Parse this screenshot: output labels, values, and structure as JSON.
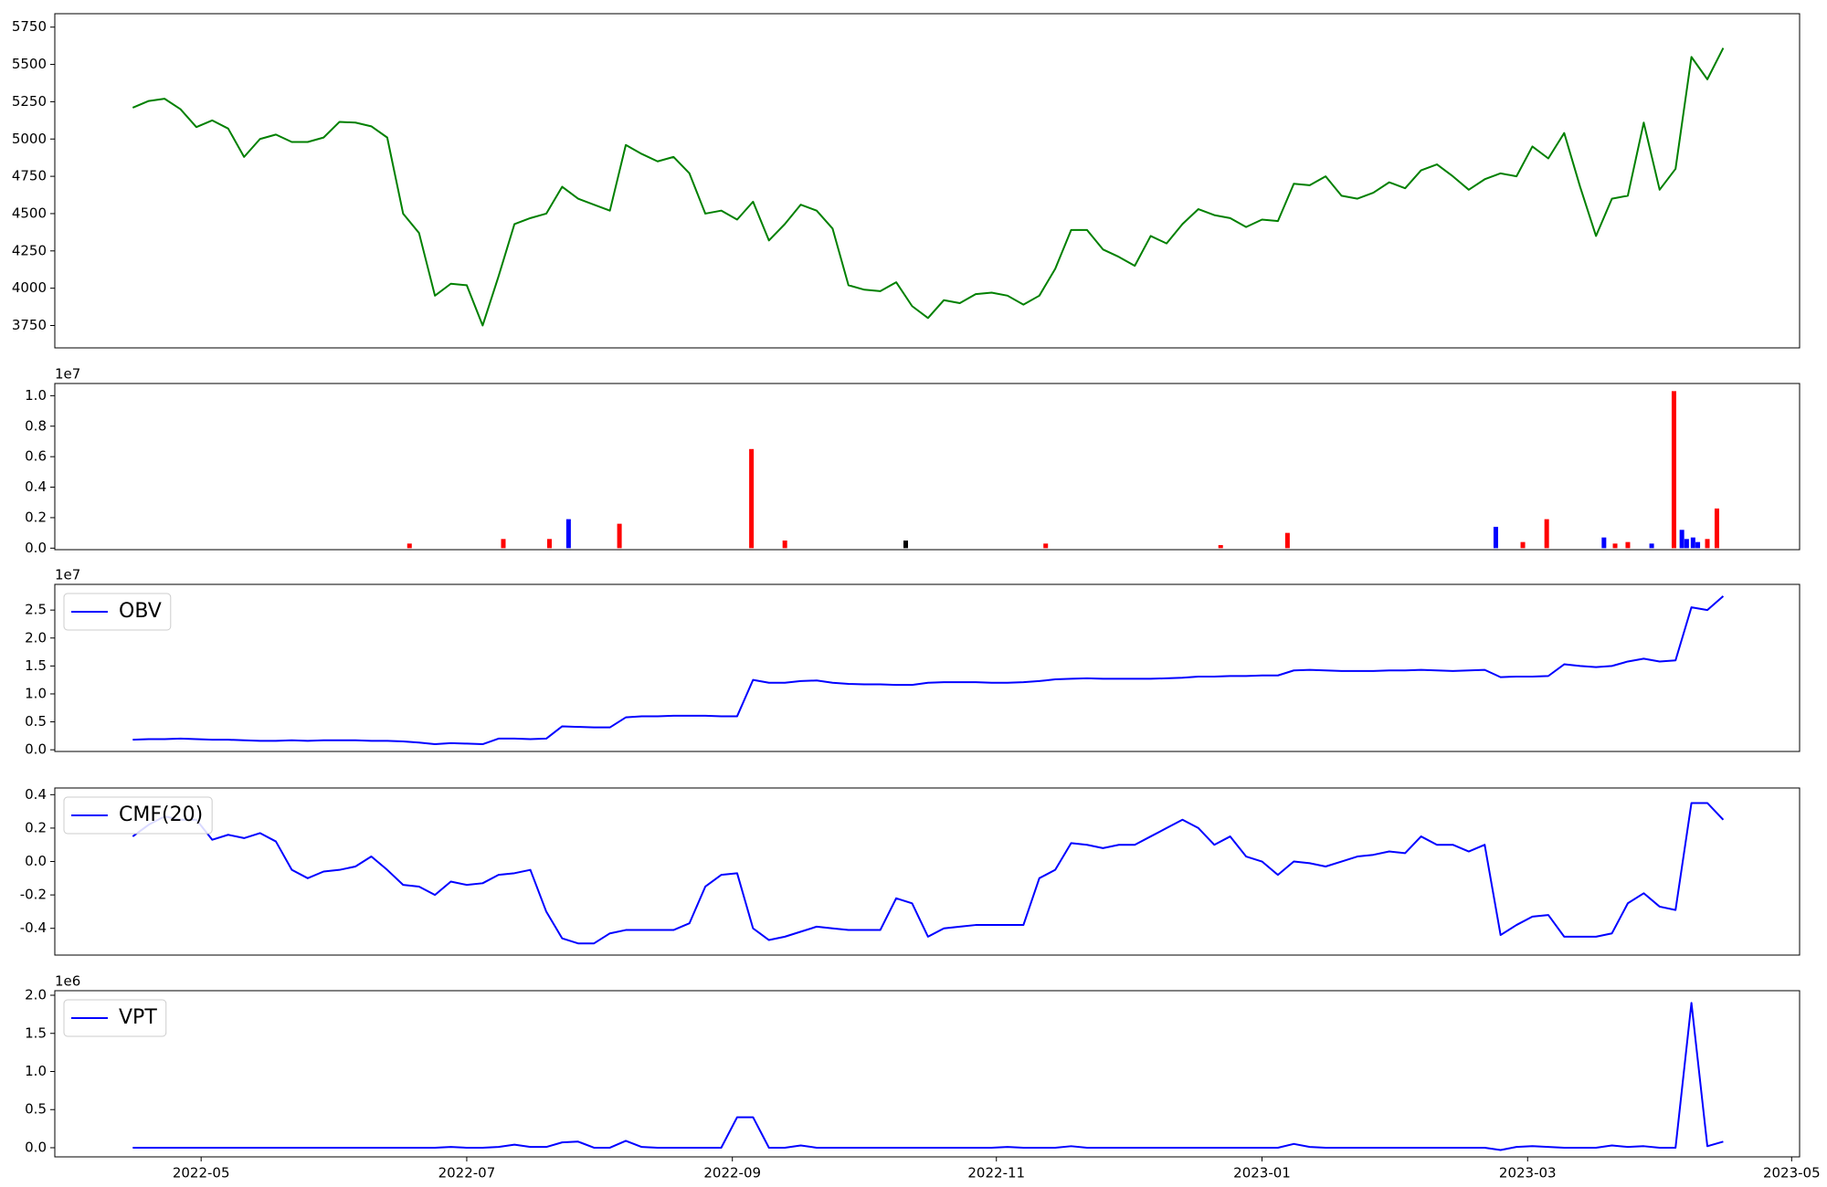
{
  "chart_data": [
    {
      "type": "line",
      "x": [
        2022.29,
        2022.3,
        2022.31,
        2022.32,
        2022.33,
        2022.34,
        2022.35,
        2022.36,
        2022.37,
        2022.38,
        2022.39,
        2022.4,
        2022.41,
        2022.42,
        2022.43,
        2022.44,
        2022.45,
        2022.46,
        2022.47,
        2022.48,
        2022.49,
        2022.5,
        2022.51,
        2022.52,
        2022.53,
        2022.54,
        2022.55,
        2022.56,
        2022.57,
        2022.58,
        2022.59,
        2022.6,
        2022.61,
        2022.62,
        2022.63,
        2022.64,
        2022.65,
        2022.66,
        2022.67,
        2022.68,
        2022.69,
        2022.7,
        2022.71,
        2022.72,
        2022.73,
        2022.74,
        2022.75,
        2022.76,
        2022.77,
        2022.78,
        2022.79,
        2022.8,
        2022.81,
        2022.82,
        2022.83,
        2022.84,
        2022.85,
        2022.86,
        2022.87,
        2022.88,
        2022.89,
        2022.9,
        2022.91,
        2022.92,
        2022.93,
        2022.94,
        2022.95,
        2022.96,
        2022.97,
        2022.98,
        2022.99,
        2023,
        2023.01,
        2023.02,
        2023.03,
        2023.04,
        2023.05,
        2023.06,
        2023.07,
        2023.08,
        2023.09,
        2023.1,
        2023.11,
        2023.12,
        2023.13,
        2023.14,
        2023.15,
        2023.16,
        2023.17,
        2023.18,
        2023.19,
        2023.2,
        2023.21,
        2023.22,
        2023.23,
        2023.24,
        2023.25,
        2023.26,
        2023.27,
        2023.28,
        2023.29
      ],
      "series": [
        {
          "color": "#008000",
          "values": [
            5210,
            5255,
            5270,
            5200,
            5080,
            5125,
            5070,
            4880,
            5000,
            5030,
            4980,
            4980,
            5010,
            5115,
            5110,
            5085,
            5010,
            4500,
            4370,
            3950,
            4030,
            4020,
            3750,
            4080,
            4430,
            4470,
            4500,
            4680,
            4600,
            4560,
            4520,
            4960,
            4900,
            4850,
            4880,
            4770,
            4500,
            4520,
            4460,
            4580,
            4320,
            4430,
            4560,
            4520,
            4400,
            4020,
            3990,
            3980,
            4040,
            3880,
            3800,
            3920,
            3900,
            3960,
            3970,
            3950,
            3890,
            3950,
            4130,
            4390,
            4390,
            4260,
            4210,
            4150,
            4350,
            4300,
            4430,
            4530,
            4490,
            4470,
            4410,
            4460,
            4450,
            4700,
            4690,
            4750,
            4620,
            4600,
            4640,
            4710,
            4670,
            4790,
            4830,
            4750,
            4660,
            4730,
            4770,
            4750,
            4950,
            4870,
            5040,
            4680,
            4350,
            4600,
            4620,
            5110,
            4660,
            4800,
            5550,
            5400,
            5610
          ]
        }
      ],
      "xlim": [
        2022.241,
        2023.338
      ],
      "ylim": [
        3600,
        5840
      ],
      "yticks": [
        3750,
        4000,
        4250,
        4500,
        4750,
        5000,
        5250,
        5500,
        5750
      ]
    },
    {
      "type": "bar",
      "offset_label": "1e7",
      "x": [
        2022.464,
        2022.523,
        2022.552,
        2022.564,
        2022.596,
        2022.679,
        2022.7,
        2022.776,
        2022.864,
        2022.974,
        2023.016,
        2023.147,
        2023.164,
        2023.179,
        2023.215,
        2023.222,
        2023.23,
        2023.245,
        2023.259,
        2023.264,
        2023.267,
        2023.271,
        2023.274,
        2023.28,
        2023.286
      ],
      "values": [
        0.03,
        0.06,
        0.06,
        0.19,
        0.16,
        0.65,
        0.05,
        0.05,
        0.03,
        0.02,
        0.1,
        0.14,
        0.04,
        0.19,
        0.07,
        0.03,
        0.04,
        0.03,
        1.03,
        0.12,
        0.06,
        0.07,
        0.04,
        0.06,
        0.26
      ],
      "colors": [
        "#ff0000",
        "#ff0000",
        "#ff0000",
        "#0000ff",
        "#ff0000",
        "#ff0000",
        "#ff0000",
        "#000000",
        "#ff0000",
        "#ff0000",
        "#ff0000",
        "#0000ff",
        "#ff0000",
        "#ff0000",
        "#0000ff",
        "#ff0000",
        "#ff0000",
        "#0000ff",
        "#ff0000",
        "#0000ff",
        "#0000ff",
        "#0000ff",
        "#0000ff",
        "#ff0000",
        "#ff0000"
      ],
      "xlim": [
        2022.241,
        2023.338
      ],
      "ylim": [
        -0.01,
        1.08
      ],
      "yticks": [
        {
          "value": 0,
          "label": "0.0"
        },
        0.2,
        0.4,
        0.6,
        0.8,
        {
          "value": 1,
          "label": "1.0"
        }
      ]
    },
    {
      "type": "line",
      "offset_label": "1e7",
      "legend": "upper left",
      "x": [
        2022.29,
        2022.3,
        2022.31,
        2022.32,
        2022.33,
        2022.34,
        2022.35,
        2022.36,
        2022.37,
        2022.38,
        2022.39,
        2022.4,
        2022.41,
        2022.42,
        2022.43,
        2022.44,
        2022.45,
        2022.46,
        2022.47,
        2022.48,
        2022.49,
        2022.5,
        2022.51,
        2022.52,
        2022.53,
        2022.54,
        2022.55,
        2022.56,
        2022.57,
        2022.58,
        2022.59,
        2022.6,
        2022.61,
        2022.62,
        2022.63,
        2022.64,
        2022.65,
        2022.66,
        2022.67,
        2022.68,
        2022.69,
        2022.7,
        2022.71,
        2022.72,
        2022.73,
        2022.74,
        2022.75,
        2022.76,
        2022.77,
        2022.78,
        2022.79,
        2022.8,
        2022.81,
        2022.82,
        2022.83,
        2022.84,
        2022.85,
        2022.86,
        2022.87,
        2022.88,
        2022.89,
        2022.9,
        2022.91,
        2022.92,
        2022.93,
        2022.94,
        2022.95,
        2022.96,
        2022.97,
        2022.98,
        2022.99,
        2023,
        2023.01,
        2023.02,
        2023.03,
        2023.04,
        2023.05,
        2023.06,
        2023.07,
        2023.08,
        2023.09,
        2023.1,
        2023.11,
        2023.12,
        2023.13,
        2023.14,
        2023.15,
        2023.16,
        2023.17,
        2023.18,
        2023.19,
        2023.2,
        2023.21,
        2023.22,
        2023.23,
        2023.24,
        2023.25,
        2023.26,
        2023.27,
        2023.28,
        2023.29
      ],
      "series": [
        {
          "name": "OBV",
          "color": "#0000ff",
          "values": [
            0.18,
            0.19,
            0.19,
            0.2,
            0.19,
            0.18,
            0.18,
            0.17,
            0.16,
            0.16,
            0.17,
            0.16,
            0.17,
            0.17,
            0.17,
            0.16,
            0.16,
            0.15,
            0.13,
            0.1,
            0.12,
            0.11,
            0.1,
            0.2,
            0.2,
            0.19,
            0.2,
            0.42,
            0.41,
            0.4,
            0.4,
            0.58,
            0.6,
            0.6,
            0.61,
            0.61,
            0.61,
            0.6,
            0.6,
            1.25,
            1.2,
            1.2,
            1.23,
            1.24,
            1.2,
            1.18,
            1.17,
            1.17,
            1.16,
            1.16,
            1.2,
            1.21,
            1.21,
            1.21,
            1.2,
            1.2,
            1.21,
            1.23,
            1.26,
            1.27,
            1.28,
            1.27,
            1.27,
            1.27,
            1.27,
            1.28,
            1.29,
            1.31,
            1.31,
            1.32,
            1.32,
            1.33,
            1.33,
            1.42,
            1.43,
            1.42,
            1.41,
            1.41,
            1.41,
            1.42,
            1.42,
            1.43,
            1.42,
            1.41,
            1.42,
            1.43,
            1.3,
            1.31,
            1.31,
            1.32,
            1.53,
            1.5,
            1.48,
            1.5,
            1.58,
            1.63,
            1.58,
            1.6,
            2.55,
            2.5,
            2.75
          ]
        }
      ],
      "xlim": [
        2022.241,
        2023.338
      ],
      "ylim": [
        -0.03,
        2.96
      ],
      "yticks": [
        {
          "value": 0,
          "label": "0.0"
        },
        0.5,
        {
          "value": 1,
          "label": "1.0"
        },
        1.5,
        {
          "value": 2,
          "label": "2.0"
        },
        2.5
      ]
    },
    {
      "type": "line",
      "legend": "upper left",
      "x": [
        2022.29,
        2022.3,
        2022.31,
        2022.32,
        2022.33,
        2022.34,
        2022.35,
        2022.36,
        2022.37,
        2022.38,
        2022.39,
        2022.4,
        2022.41,
        2022.42,
        2022.43,
        2022.44,
        2022.45,
        2022.46,
        2022.47,
        2022.48,
        2022.49,
        2022.5,
        2022.51,
        2022.52,
        2022.53,
        2022.54,
        2022.55,
        2022.56,
        2022.57,
        2022.58,
        2022.59,
        2022.6,
        2022.61,
        2022.62,
        2022.63,
        2022.64,
        2022.65,
        2022.66,
        2022.67,
        2022.68,
        2022.69,
        2022.7,
        2022.71,
        2022.72,
        2022.73,
        2022.74,
        2022.75,
        2022.76,
        2022.77,
        2022.78,
        2022.79,
        2022.8,
        2022.81,
        2022.82,
        2022.83,
        2022.84,
        2022.85,
        2022.86,
        2022.87,
        2022.88,
        2022.89,
        2022.9,
        2022.91,
        2022.92,
        2022.93,
        2022.94,
        2022.95,
        2022.96,
        2022.97,
        2022.98,
        2022.99,
        2023,
        2023.01,
        2023.02,
        2023.03,
        2023.04,
        2023.05,
        2023.06,
        2023.07,
        2023.08,
        2023.09,
        2023.1,
        2023.11,
        2023.12,
        2023.13,
        2023.14,
        2023.15,
        2023.16,
        2023.17,
        2023.18,
        2023.19,
        2023.2,
        2023.21,
        2023.22,
        2023.23,
        2023.24,
        2023.25,
        2023.26,
        2023.27,
        2023.28,
        2023.29
      ],
      "series": [
        {
          "name": "CMF(20)",
          "color": "#0000ff",
          "values": [
            0.15,
            0.22,
            0.27,
            0.25,
            0.25,
            0.13,
            0.16,
            0.14,
            0.17,
            0.12,
            -0.05,
            -0.1,
            -0.06,
            -0.05,
            -0.03,
            0.03,
            -0.05,
            -0.14,
            -0.15,
            -0.2,
            -0.12,
            -0.14,
            -0.13,
            -0.08,
            -0.07,
            -0.05,
            -0.3,
            -0.46,
            -0.49,
            -0.49,
            -0.43,
            -0.41,
            -0.41,
            -0.41,
            -0.41,
            -0.37,
            -0.15,
            -0.08,
            -0.07,
            -0.4,
            -0.47,
            -0.45,
            -0.42,
            -0.39,
            -0.4,
            -0.41,
            -0.41,
            -0.41,
            -0.22,
            -0.25,
            -0.45,
            -0.4,
            -0.39,
            -0.38,
            -0.38,
            -0.38,
            -0.38,
            -0.1,
            -0.05,
            0.11,
            0.1,
            0.08,
            0.1,
            0.1,
            0.15,
            0.2,
            0.25,
            0.2,
            0.1,
            0.15,
            0.03,
            0,
            -0.08,
            0,
            -0.01,
            -0.03,
            0,
            0.03,
            0.04,
            0.06,
            0.05,
            0.15,
            0.1,
            0.1,
            0.06,
            0.1,
            -0.44,
            -0.38,
            -0.33,
            -0.32,
            -0.45,
            -0.45,
            -0.45,
            -0.43,
            -0.25,
            -0.19,
            -0.27,
            -0.29,
            0.35,
            0.35,
            0.25
          ]
        }
      ],
      "xlim": [
        2022.241,
        2023.338
      ],
      "ylim": [
        -0.56,
        0.44
      ],
      "yticks": [
        -0.4,
        -0.2,
        {
          "value": 0,
          "label": "0.0"
        },
        0.2,
        0.4
      ]
    },
    {
      "type": "line",
      "offset_label": "1e6",
      "legend": "upper left",
      "x": [
        2022.29,
        2022.3,
        2022.31,
        2022.32,
        2022.33,
        2022.34,
        2022.35,
        2022.36,
        2022.37,
        2022.38,
        2022.39,
        2022.4,
        2022.41,
        2022.42,
        2022.43,
        2022.44,
        2022.45,
        2022.46,
        2022.47,
        2022.48,
        2022.49,
        2022.5,
        2022.51,
        2022.52,
        2022.53,
        2022.54,
        2022.55,
        2022.56,
        2022.57,
        2022.58,
        2022.59,
        2022.6,
        2022.61,
        2022.62,
        2022.63,
        2022.64,
        2022.65,
        2022.66,
        2022.67,
        2022.68,
        2022.69,
        2022.7,
        2022.71,
        2022.72,
        2022.73,
        2022.74,
        2022.75,
        2022.76,
        2022.77,
        2022.78,
        2022.79,
        2022.8,
        2022.81,
        2022.82,
        2022.83,
        2022.84,
        2022.85,
        2022.86,
        2022.87,
        2022.88,
        2022.89,
        2022.9,
        2022.91,
        2022.92,
        2022.93,
        2022.94,
        2022.95,
        2022.96,
        2022.97,
        2022.98,
        2022.99,
        2023,
        2023.01,
        2023.02,
        2023.03,
        2023.04,
        2023.05,
        2023.06,
        2023.07,
        2023.08,
        2023.09,
        2023.1,
        2023.11,
        2023.12,
        2023.13,
        2023.14,
        2023.15,
        2023.16,
        2023.17,
        2023.18,
        2023.19,
        2023.2,
        2023.21,
        2023.22,
        2023.23,
        2023.24,
        2023.25,
        2023.26,
        2023.27,
        2023.28,
        2023.29
      ],
      "series": [
        {
          "name": "VPT",
          "color": "#0000ff",
          "values": [
            0,
            0,
            0,
            0,
            0,
            0,
            0,
            0,
            0,
            0,
            0,
            0,
            0,
            0,
            0,
            0,
            0,
            0,
            0,
            0,
            0.01,
            0,
            0,
            0.01,
            0.04,
            0.01,
            0.01,
            0.07,
            0.08,
            0,
            0,
            0.09,
            0.01,
            0,
            0,
            0,
            0,
            0,
            0.4,
            0.4,
            0,
            0,
            0.03,
            0,
            0,
            0,
            0,
            0,
            0,
            0,
            0,
            0,
            0,
            0,
            0,
            0.01,
            0,
            0,
            0,
            0.02,
            0,
            0,
            0,
            0,
            0,
            0,
            0,
            0,
            0,
            0,
            0,
            0,
            0,
            0.05,
            0.01,
            0,
            0,
            0,
            0,
            0,
            0,
            0,
            0,
            0,
            0,
            0,
            -0.03,
            0.01,
            0.02,
            0.01,
            0,
            0,
            0,
            0.03,
            0.01,
            0.02,
            0,
            0,
            1.9,
            0.02,
            0.08
          ]
        }
      ],
      "xlim": [
        2022.241,
        2023.338
      ],
      "ylim": [
        -0.12,
        2.06
      ],
      "yticks": [
        {
          "value": 0,
          "label": "0.0"
        },
        0.5,
        {
          "value": 1,
          "label": "1.0"
        },
        1.5,
        {
          "value": 2,
          "label": "2.0"
        }
      ],
      "xticks": [
        {
          "value": 2022.333,
          "label": "2022-05"
        },
        {
          "value": 2022.5,
          "label": "2022-07"
        },
        {
          "value": 2022.667,
          "label": "2022-09"
        },
        {
          "value": 2022.833,
          "label": "2022-11"
        },
        {
          "value": 2023.0,
          "label": "2023-01"
        },
        {
          "value": 2023.167,
          "label": "2023-03"
        },
        {
          "value": 2023.333,
          "label": "2023-05"
        }
      ]
    }
  ]
}
